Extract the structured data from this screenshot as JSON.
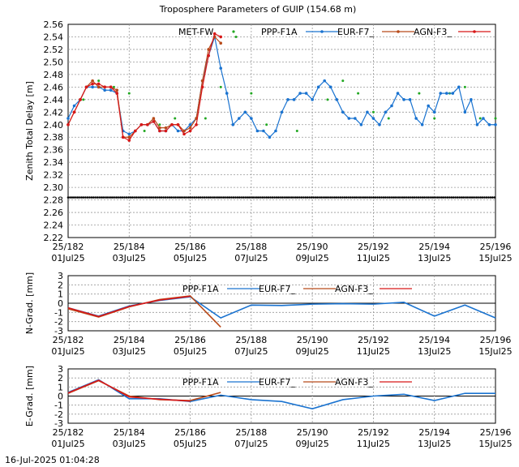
{
  "title": "Troposphere Parameters of GUIP (154.68 m)",
  "timestamp": "16-Jul-2025 01:04:28",
  "colors": {
    "met_fw": "#22a822",
    "ppp_f1a": "#1a73d0",
    "eur_f7": "#b84a1a",
    "agn_f3": "#d81818",
    "reference_line": "#000000",
    "grid": "#999999"
  },
  "x_ticks": [
    {
      "day": "25/182",
      "date": "01Jul25"
    },
    {
      "day": "25/184",
      "date": "03Jul25"
    },
    {
      "day": "25/186",
      "date": "05Jul25"
    },
    {
      "day": "25/188",
      "date": "07Jul25"
    },
    {
      "day": "25/190",
      "date": "09Jul25"
    },
    {
      "day": "25/192",
      "date": "11Jul25"
    },
    {
      "day": "25/194",
      "date": "13Jul25"
    },
    {
      "day": "25/196",
      "date": "15Jul25"
    }
  ],
  "chart_data": [
    {
      "type": "line",
      "panel": "ztd",
      "ylabel": "Zenith Total Delay [m]",
      "xlim": [
        "25/182",
        "25/196"
      ],
      "ylim": [
        2.22,
        2.56
      ],
      "yticks": [
        "2.22",
        "2.24",
        "2.26",
        "2.28",
        "2.30",
        "2.32",
        "2.34",
        "2.36",
        "2.38",
        "2.40",
        "2.42",
        "2.44",
        "2.46",
        "2.48",
        "2.50",
        "2.52",
        "2.54",
        "2.56"
      ],
      "grid": true,
      "legend": "top",
      "x_units": "day of year 2025",
      "series": [
        {
          "name": "MET-FW",
          "style": "dots",
          "color_key": "met_fw",
          "x": [
            182.0,
            182.5,
            183.0,
            183.5,
            184.0,
            184.5,
            185.0,
            185.5,
            186.0,
            186.5,
            187.0,
            187.5,
            188.0,
            188.5,
            189.0,
            189.5,
            190.0,
            190.5,
            191.0,
            191.5,
            192.0,
            192.5,
            193.0,
            193.5,
            194.0,
            194.5,
            195.0,
            195.5,
            196.0
          ],
          "y": [
            2.41,
            2.44,
            2.47,
            2.46,
            2.45,
            2.39,
            2.4,
            2.41,
            2.4,
            2.41,
            2.46,
            2.54,
            2.45,
            2.4,
            2.42,
            2.39,
            2.44,
            2.44,
            2.47,
            2.45,
            2.42,
            2.41,
            2.44,
            2.45,
            2.41,
            2.45,
            2.46,
            2.41,
            2.41
          ]
        },
        {
          "name": "PPP-F1A",
          "style": "line-dots",
          "color_key": "ppp_f1a",
          "x": [
            182.0,
            182.2,
            182.4,
            182.6,
            182.8,
            183.0,
            183.2,
            183.4,
            183.6,
            183.8,
            184.0,
            184.2,
            184.4,
            184.6,
            184.8,
            185.0,
            185.2,
            185.4,
            185.6,
            185.8,
            186.0,
            186.2,
            186.4,
            186.6,
            186.8,
            187.0,
            187.2,
            187.4,
            187.6,
            187.8,
            188.0,
            188.2,
            188.4,
            188.6,
            188.8,
            189.0,
            189.2,
            189.4,
            189.6,
            189.8,
            190.0,
            190.2,
            190.4,
            190.6,
            190.8,
            191.0,
            191.2,
            191.4,
            191.6,
            191.8,
            192.0,
            192.2,
            192.4,
            192.6,
            192.8,
            193.0,
            193.2,
            193.4,
            193.6,
            193.8,
            194.0,
            194.2,
            194.4,
            194.6,
            194.8,
            195.0,
            195.2,
            195.4,
            195.6,
            195.8,
            196.0
          ],
          "y": [
            2.41,
            2.43,
            2.44,
            2.46,
            2.46,
            2.46,
            2.455,
            2.455,
            2.45,
            2.39,
            2.385,
            2.39,
            2.4,
            2.4,
            2.405,
            2.39,
            2.39,
            2.4,
            2.39,
            2.39,
            2.4,
            2.41,
            2.47,
            2.51,
            2.54,
            2.49,
            2.45,
            2.4,
            2.41,
            2.42,
            2.41,
            2.39,
            2.39,
            2.38,
            2.39,
            2.42,
            2.44,
            2.44,
            2.45,
            2.45,
            2.44,
            2.46,
            2.47,
            2.46,
            2.44,
            2.42,
            2.41,
            2.41,
            2.4,
            2.42,
            2.41,
            2.4,
            2.42,
            2.43,
            2.45,
            2.44,
            2.44,
            2.41,
            2.4,
            2.43,
            2.42,
            2.45,
            2.45,
            2.45,
            2.46,
            2.42,
            2.44,
            2.4,
            2.41,
            2.4,
            2.4
          ]
        },
        {
          "name": "EUR-F7_",
          "style": "line-dots",
          "color_key": "eur_f7",
          "x": [
            182.0,
            182.2,
            182.4,
            182.6,
            182.8,
            183.0,
            183.2,
            183.4,
            183.6,
            183.8,
            184.0,
            184.2,
            184.4,
            184.6,
            184.8,
            185.0,
            185.2,
            185.4,
            185.6,
            185.8,
            186.0,
            186.2,
            186.4,
            186.6,
            186.8,
            187.0
          ],
          "y": [
            2.4,
            2.42,
            2.44,
            2.46,
            2.47,
            2.46,
            2.46,
            2.46,
            2.455,
            2.38,
            2.38,
            2.39,
            2.4,
            2.4,
            2.41,
            2.395,
            2.395,
            2.4,
            2.4,
            2.39,
            2.395,
            2.41,
            2.47,
            2.52,
            2.54,
            2.53
          ]
        },
        {
          "name": "AGN-F3_",
          "style": "line-dots",
          "color_key": "agn_f3",
          "x": [
            182.0,
            182.2,
            182.4,
            182.6,
            182.8,
            183.0,
            183.2,
            183.4,
            183.6,
            183.8,
            184.0,
            184.2,
            184.4,
            184.6,
            184.8,
            185.0,
            185.2,
            185.4,
            185.6,
            185.8,
            186.0,
            186.2,
            186.4,
            186.6,
            186.8,
            187.0
          ],
          "y": [
            2.4,
            2.42,
            2.44,
            2.46,
            2.465,
            2.465,
            2.46,
            2.46,
            2.45,
            2.38,
            2.375,
            2.39,
            2.4,
            2.4,
            2.405,
            2.39,
            2.39,
            2.4,
            2.4,
            2.385,
            2.39,
            2.4,
            2.46,
            2.51,
            2.545,
            2.54
          ]
        },
        {
          "name": "",
          "style": "reference-dots",
          "color_key": "reference_line",
          "x": [
            182,
            196
          ],
          "y": [
            2.284,
            2.284
          ]
        }
      ]
    },
    {
      "type": "line",
      "panel": "north_gradient",
      "ylabel": "N-Grad. [mm]",
      "xlim": [
        "25/182",
        "25/196"
      ],
      "ylim": [
        -3,
        3
      ],
      "yticks": [
        "-3",
        "-2",
        "-1",
        "0",
        "1",
        "2",
        "3"
      ],
      "grid": true,
      "legend": "top",
      "series": [
        {
          "name": "PPP-F1A",
          "color_key": "ppp_f1a",
          "x": [
            182,
            183,
            184,
            185,
            186,
            187,
            188,
            189,
            190,
            191,
            192,
            193,
            194,
            195,
            196
          ],
          "y": [
            -0.5,
            -1.4,
            -0.3,
            0.3,
            0.7,
            -1.6,
            -0.2,
            -0.25,
            -0.1,
            -0.05,
            -0.1,
            0.1,
            -1.4,
            -0.2,
            -1.6
          ]
        },
        {
          "name": "EUR-F7_",
          "color_key": "eur_f7",
          "x": [
            182,
            183,
            184,
            185,
            186,
            187
          ],
          "y": [
            -0.6,
            -1.5,
            -0.4,
            0.4,
            0.8,
            -2.6
          ]
        },
        {
          "name": "AGN-F3_",
          "color_key": "agn_f3",
          "x": [
            182,
            183,
            184,
            185,
            186
          ],
          "y": [
            -0.5,
            -1.45,
            -0.35,
            0.35,
            0.75
          ]
        }
      ]
    },
    {
      "type": "line",
      "panel": "east_gradient",
      "ylabel": "E-Grad. [mm]",
      "xlim": [
        "25/182",
        "25/196"
      ],
      "ylim": [
        -3,
        3
      ],
      "yticks": [
        "-3",
        "-2",
        "-1",
        "0",
        "1",
        "2",
        "3"
      ],
      "grid": true,
      "legend": "top",
      "series": [
        {
          "name": "PPP-F1A",
          "color_key": "ppp_f1a",
          "x": [
            182,
            183,
            184,
            185,
            186,
            187,
            188,
            189,
            190,
            191,
            192,
            193,
            194,
            195,
            196
          ],
          "y": [
            0.4,
            1.8,
            -0.3,
            -0.3,
            -0.6,
            0.1,
            -0.4,
            -0.6,
            -1.4,
            -0.4,
            0.0,
            0.2,
            -0.5,
            0.3,
            0.3
          ]
        },
        {
          "name": "EUR-F7_",
          "color_key": "eur_f7",
          "x": [
            182,
            183,
            184,
            185,
            186,
            187
          ],
          "y": [
            0.3,
            1.7,
            0.0,
            -0.4,
            -0.5,
            0.4
          ]
        },
        {
          "name": "AGN-F3_",
          "color_key": "agn_f3",
          "x": [
            182,
            183,
            184,
            185,
            186
          ],
          "y": [
            0.35,
            1.75,
            -0.1,
            -0.35,
            -0.55
          ]
        }
      ]
    }
  ]
}
